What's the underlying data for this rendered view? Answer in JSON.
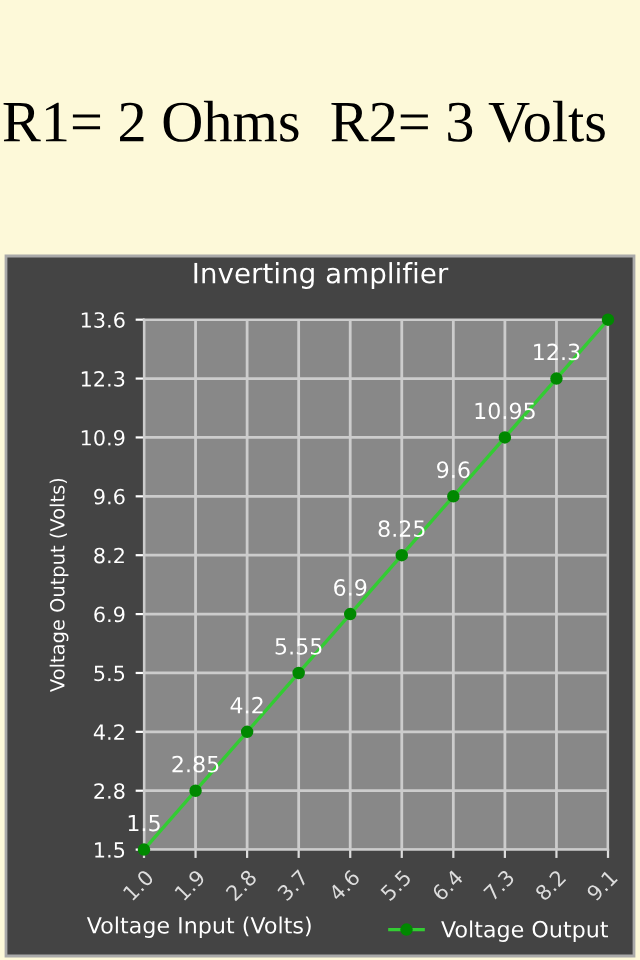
{
  "chart_data": {
    "type": "line",
    "title": "Inverting amplifier",
    "xlabel": "Voltage Input (Volts)",
    "ylabel": "Voltage Output (Volts)",
    "annotations": [
      "R1= 2 Ohms  R2= 3 Volts"
    ],
    "x": [
      1.0,
      1.9,
      2.8,
      3.7,
      4.6,
      5.5,
      6.4,
      7.3,
      8.2,
      9.1
    ],
    "series": [
      {
        "name": "Voltage Output",
        "color": "#33cc33",
        "values": [
          1.5,
          2.85,
          4.2,
          5.55,
          6.9,
          8.25,
          9.6,
          10.95,
          12.3,
          13.65
        ],
        "value_labels": [
          "1.5",
          "2.85",
          "4.2",
          "5.55",
          "6.9",
          "8.25",
          "9.6",
          "10.95",
          "12.3",
          null
        ]
      }
    ],
    "xlim": [
      1.0,
      9.1
    ],
    "xticks": [
      {
        "value": 1.0,
        "label": "1.0"
      },
      1.9,
      2.8,
      3.7,
      4.6,
      5.5,
      6.4,
      7.3,
      8.2,
      9.1
    ],
    "ylim": [
      1.5,
      13.65
    ],
    "yticks": [
      1.5,
      {
        "value": 2.85,
        "label": "2.8"
      },
      {
        "value": 4.2,
        "label": "4.2"
      },
      {
        "value": 5.55,
        "label": "5.5"
      },
      6.9,
      {
        "value": 8.25,
        "label": "8.2"
      },
      9.6,
      {
        "value": 10.95,
        "label": "10.9"
      },
      12.3,
      {
        "value": 13.65,
        "label": "13.6"
      }
    ],
    "grid": true,
    "legend": "bottom",
    "marker": "circle",
    "line_style": "solid"
  }
}
